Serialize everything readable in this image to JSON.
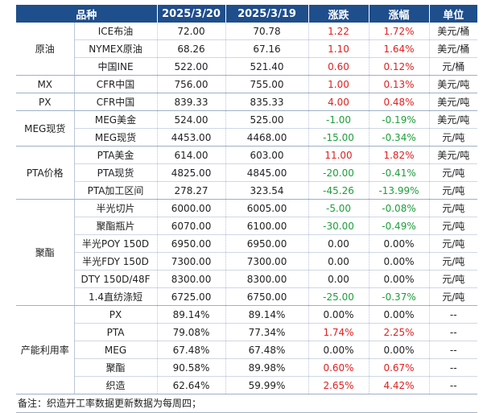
{
  "header": {
    "category": "品种",
    "date1": "2025/3/20",
    "date2": "2025/3/19",
    "change": "涨跌",
    "pct": "涨幅",
    "unit": "单位"
  },
  "groups": [
    {
      "name": "原油",
      "rows": [
        {
          "item": "ICE布油",
          "v1": "72.00",
          "v2": "70.78",
          "chg": "1.22",
          "pct": "1.72%",
          "unit": "美元/桶",
          "dir": "up"
        },
        {
          "item": "NYMEX原油",
          "v1": "68.26",
          "v2": "67.16",
          "chg": "1.10",
          "pct": "1.64%",
          "unit": "美元/桶",
          "dir": "up"
        },
        {
          "item": "中国INE",
          "v1": "522.00",
          "v2": "521.40",
          "chg": "0.60",
          "pct": "0.12%",
          "unit": "元/桶",
          "dir": "up"
        }
      ]
    },
    {
      "name": "MX",
      "rows": [
        {
          "item": "CFR中国",
          "v1": "756.00",
          "v2": "755.00",
          "chg": "1.00",
          "pct": "0.13%",
          "unit": "美元/吨",
          "dir": "up"
        }
      ]
    },
    {
      "name": "PX",
      "rows": [
        {
          "item": "CFR中国",
          "v1": "839.33",
          "v2": "835.33",
          "chg": "4.00",
          "pct": "0.48%",
          "unit": "美元/吨",
          "dir": "up"
        }
      ]
    },
    {
      "name": "MEG现货",
      "rows": [
        {
          "item": "MEG美金",
          "v1": "524.00",
          "v2": "525.00",
          "chg": "-1.00",
          "pct": "-0.19%",
          "unit": "美元/吨",
          "dir": "down"
        },
        {
          "item": "MEG现货",
          "v1": "4453.00",
          "v2": "4468.00",
          "chg": "-15.00",
          "pct": "-0.34%",
          "unit": "元/吨",
          "dir": "down"
        }
      ]
    },
    {
      "name": "PTA价格",
      "rows": [
        {
          "item": "PTA美金",
          "v1": "614.00",
          "v2": "603.00",
          "chg": "11.00",
          "pct": "1.82%",
          "unit": "美元/吨",
          "dir": "up"
        },
        {
          "item": "PTA现货",
          "v1": "4825.00",
          "v2": "4845.00",
          "chg": "-20.00",
          "pct": "-0.41%",
          "unit": "元/吨",
          "dir": "down"
        },
        {
          "item": "PTA加工区间",
          "v1": "278.27",
          "v2": "323.54",
          "chg": "-45.26",
          "pct": "-13.99%",
          "unit": "元/吨",
          "dir": "down"
        }
      ]
    },
    {
      "name": "聚酯",
      "rows": [
        {
          "item": "半光切片",
          "v1": "6000.00",
          "v2": "6005.00",
          "chg": "-5.00",
          "pct": "-0.08%",
          "unit": "元/吨",
          "dir": "down"
        },
        {
          "item": "聚酯瓶片",
          "v1": "6070.00",
          "v2": "6100.00",
          "chg": "-30.00",
          "pct": "-0.49%",
          "unit": "元/吨",
          "dir": "down"
        },
        {
          "item": "半光POY 150D",
          "v1": "6950.00",
          "v2": "6950.00",
          "chg": "0.00",
          "pct": "0.00%",
          "unit": "元/吨",
          "dir": "flat"
        },
        {
          "item": "半光FDY 150D",
          "v1": "7300.00",
          "v2": "7300.00",
          "chg": "0.00",
          "pct": "0.00%",
          "unit": "元/吨",
          "dir": "flat"
        },
        {
          "item": "DTY 150D/48F",
          "v1": "8300.00",
          "v2": "8300.00",
          "chg": "0.00",
          "pct": "0.00%",
          "unit": "元/吨",
          "dir": "flat"
        },
        {
          "item": "1.4直纺涤短",
          "v1": "6725.00",
          "v2": "6750.00",
          "chg": "-25.00",
          "pct": "-0.37%",
          "unit": "元/吨",
          "dir": "down"
        }
      ]
    },
    {
      "name": "产能利用率",
      "rows": [
        {
          "item": "PX",
          "v1": "89.14%",
          "v2": "89.14%",
          "chg": "0.00%",
          "pct": "0.00%",
          "unit": "--",
          "dir": "flat"
        },
        {
          "item": "PTA",
          "v1": "79.08%",
          "v2": "77.34%",
          "chg": "1.74%",
          "pct": "2.25%",
          "unit": "--",
          "dir": "up"
        },
        {
          "item": "MEG",
          "v1": "67.48%",
          "v2": "67.48%",
          "chg": "0.00%",
          "pct": "0.00%",
          "unit": "--",
          "dir": "flat"
        },
        {
          "item": "聚酯",
          "v1": "90.58%",
          "v2": "89.98%",
          "chg": "0.60%",
          "pct": "0.67%",
          "unit": "--",
          "dir": "up"
        },
        {
          "item": "织造",
          "v1": "62.64%",
          "v2": "59.99%",
          "chg": "2.65%",
          "pct": "4.42%",
          "unit": "--",
          "dir": "up"
        }
      ]
    }
  ],
  "note": "备注：织造开工率数据更新数据为每周四；",
  "colors": {
    "header_bg": "#1f4e8c",
    "up": "#e02020",
    "down": "#1e9e3a"
  }
}
